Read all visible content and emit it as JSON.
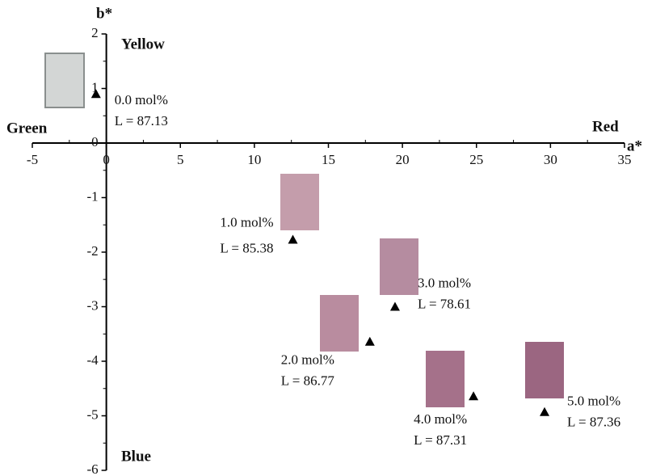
{
  "chart_data": {
    "type": "scatter",
    "x_label": "a*",
    "y_label": "b*",
    "annotations": {
      "top": "Yellow",
      "bottom": "Blue",
      "left": "Green",
      "right": "Red"
    },
    "xlim": [
      -5,
      35
    ],
    "ylim": [
      -6,
      2
    ],
    "xticks": [
      -5,
      0,
      5,
      10,
      15,
      20,
      25,
      30,
      35
    ],
    "yticks": [
      -6,
      -5,
      -4,
      -3,
      -2,
      -1,
      0,
      1,
      2
    ],
    "color": "#000000",
    "x": [
      -0.7,
      12.6,
      17.8,
      19.5,
      24.8,
      29.6
    ],
    "values": [
      0.9,
      -1.77,
      -3.64,
      -3.0,
      -4.64,
      -4.93
    ],
    "labels": [
      "0.0 mol%",
      "1.0 mol%",
      "2.0 mol%",
      "3.0 mol%",
      "4.0 mol%",
      "5.0 mol%"
    ],
    "sublabels": [
      "L = 87.13",
      "L = 85.38",
      "L = 86.77",
      "L = 78.61",
      "L = 87.31",
      "L = 87.36"
    ],
    "swatch_colors": [
      "#d3d6d5",
      "#c49dab",
      "#b98c9f",
      "#b58ca0",
      "#a5718a",
      "#9b6681"
    ]
  }
}
